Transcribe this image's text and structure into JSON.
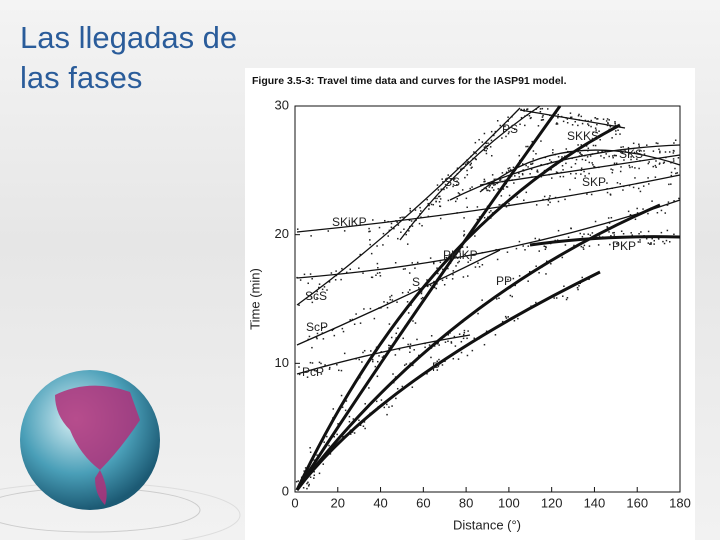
{
  "slide": {
    "title": "Las llegadas de las fases"
  },
  "figure": {
    "caption": "Figure 3.5-3: Travel time data and curves for the IASP91 model.",
    "x_axis": {
      "label": "Distance (°)",
      "ticks": [
        0,
        20,
        40,
        60,
        80,
        100,
        120,
        140,
        160,
        180
      ]
    },
    "y_axis": {
      "label": "Time (min)",
      "ticks": [
        0,
        10,
        20,
        30
      ]
    },
    "phases": [
      "PS",
      "SKKS",
      "SKS",
      "SS",
      "SKP",
      "SKiKP",
      "PKiKP",
      "PKP",
      "S",
      "PP",
      "ScS",
      "ScP",
      "PcP",
      "P"
    ]
  }
}
